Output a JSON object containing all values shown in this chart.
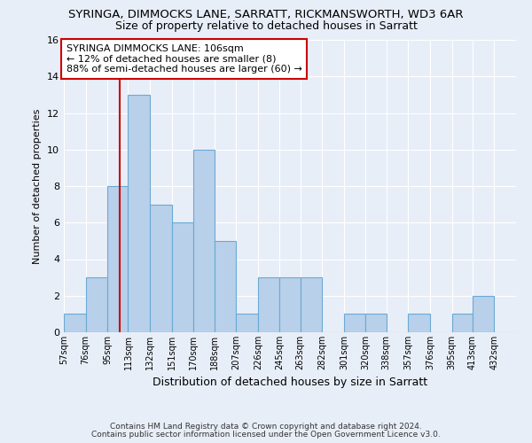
{
  "title": "SYRINGA, DIMMOCKS LANE, SARRATT, RICKMANSWORTH, WD3 6AR",
  "subtitle": "Size of property relative to detached houses in Sarratt",
  "xlabel": "Distribution of detached houses by size in Sarratt",
  "ylabel": "Number of detached properties",
  "bar_labels": [
    "57sqm",
    "76sqm",
    "95sqm",
    "113sqm",
    "132sqm",
    "151sqm",
    "170sqm",
    "188sqm",
    "207sqm",
    "226sqm",
    "245sqm",
    "263sqm",
    "282sqm",
    "301sqm",
    "320sqm",
    "338sqm",
    "357sqm",
    "376sqm",
    "395sqm",
    "413sqm",
    "432sqm"
  ],
  "bar_values": [
    1,
    3,
    8,
    13,
    7,
    6,
    10,
    5,
    1,
    3,
    3,
    3,
    0,
    1,
    1,
    0,
    1,
    0,
    1,
    2,
    0
  ],
  "bar_color": "#b8d0ea",
  "bar_edgecolor": "#6aaad4",
  "bar_linewidth": 0.8,
  "vline_x": 106,
  "bin_edges": [
    57,
    76,
    95,
    113,
    132,
    151,
    170,
    188,
    207,
    226,
    245,
    263,
    282,
    301,
    320,
    338,
    357,
    376,
    395,
    413,
    432,
    451
  ],
  "ylim": [
    0,
    16
  ],
  "yticks": [
    0,
    2,
    4,
    6,
    8,
    10,
    12,
    14,
    16
  ],
  "annotation_line1": "SYRINGA DIMMOCKS LANE: 106sqm",
  "annotation_line2": "← 12% of detached houses are smaller (8)",
  "annotation_line3": "88% of semi-detached houses are larger (60) →",
  "annotation_box_edgecolor": "#cc0000",
  "annotation_box_facecolor": "#ffffff",
  "vline_color": "#cc0000",
  "vline_linewidth": 1.5,
  "footnote1": "Contains HM Land Registry data © Crown copyright and database right 2024.",
  "footnote2": "Contains public sector information licensed under the Open Government Licence v3.0.",
  "background_color": "#e8eef8",
  "plot_background": "#e8eef8",
  "grid_color": "#ffffff",
  "title_fontsize": 9.5,
  "subtitle_fontsize": 9,
  "annotation_fontsize": 8,
  "ylabel_fontsize": 8,
  "xlabel_fontsize": 9
}
